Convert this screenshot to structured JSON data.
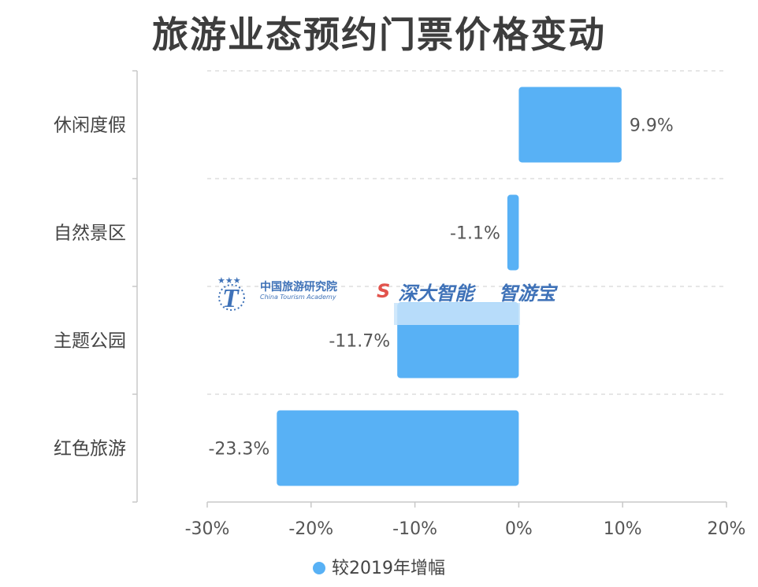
{
  "title": "旅游业态预约门票价格变动",
  "colors": {
    "bar": "#58b1f5",
    "axis": "#c8c8c8",
    "grid": "#cccccc"
  },
  "watermark": {
    "org_cn": "中国旅游研究院",
    "org_en": "China Tourism Academy",
    "brand1": "深大智能",
    "brand2": "智游宝"
  },
  "chart_data": {
    "type": "bar",
    "orientation": "horizontal",
    "title": "旅游业态预约门票价格变动",
    "categories": [
      "休闲度假",
      "自然景区",
      "主题公园",
      "红色旅游"
    ],
    "series": [
      {
        "name": "较2019年增幅",
        "values": [
          9.9,
          -1.1,
          -11.7,
          -23.3
        ]
      }
    ],
    "data_labels": [
      "9.9%",
      "-1.1%",
      "-11.7%",
      "-23.3%"
    ],
    "xlim": [
      -30,
      20
    ],
    "xticks": [
      -30,
      -20,
      -10,
      0,
      10,
      20
    ],
    "xtick_labels": [
      "-30%",
      "-20%",
      "-10%",
      "0%",
      "10%",
      "20%"
    ],
    "grid": true,
    "legend": "bottom"
  }
}
